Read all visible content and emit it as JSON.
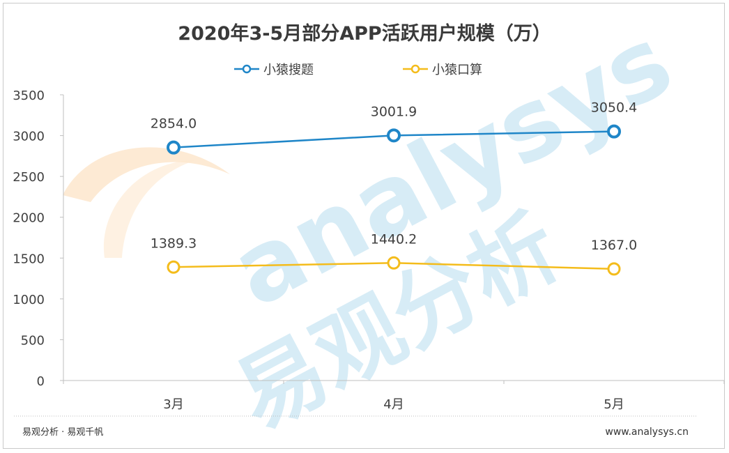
{
  "watermark": {
    "latin": "analysys",
    "chinese": "易观分析"
  },
  "footer": {
    "source": "易观分析 · 易观千帆",
    "website": "www.analysys.cn"
  },
  "colors": {
    "series_1": "#1f86c8",
    "series_2": "#f4bc1b",
    "axis": "#bfbfbf",
    "watermark_blue": "#d7ecf6",
    "watermark_orange": "#fde8cf"
  },
  "chart_data": {
    "type": "line",
    "title": "2020年3-5月部分APP活跃用户规模（万）",
    "categories": [
      "3月",
      "4月",
      "5月"
    ],
    "series": [
      {
        "name": "小猿搜题",
        "values": [
          2854.0,
          3001.9,
          3050.4
        ],
        "labels": [
          "2854.0",
          "3001.9",
          "3050.4"
        ]
      },
      {
        "name": "小猿口算",
        "values": [
          1389.3,
          1440.2,
          1367.0
        ],
        "labels": [
          "1389.3",
          "1440.2",
          "1367.0"
        ]
      }
    ],
    "ylim": [
      0,
      3500
    ],
    "yticks": [
      0,
      500,
      1000,
      1500,
      2000,
      2500,
      3000,
      3500
    ],
    "grid": false,
    "legend": "top-center"
  }
}
